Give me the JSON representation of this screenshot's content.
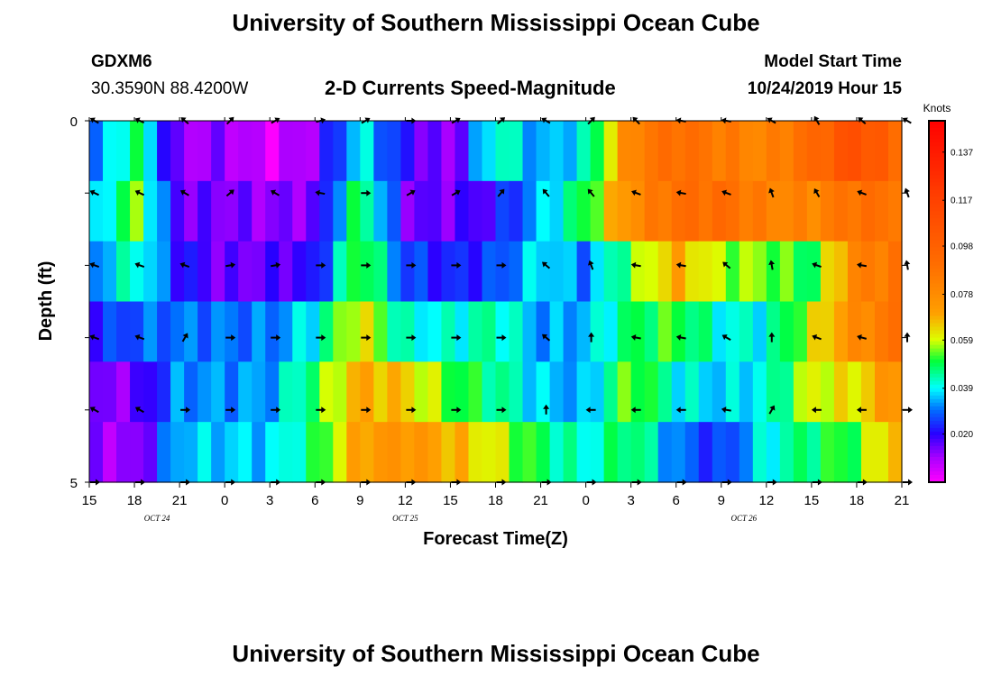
{
  "header": {
    "title_top": "University of Southern Mississippi Ocean Cube",
    "title_bottom": "University of Southern Mississippi Ocean Cube",
    "station_id": "GDXM6",
    "coords": "30.3590N 88.4200W",
    "model_start_label": "Model Start Time",
    "model_start_value": "10/24/2019 Hour 15"
  },
  "chart_data": {
    "type": "heatmap",
    "title": "2-D Currents Speed-Magnitude",
    "xlabel": "Forecast Time(Z)",
    "ylabel": "Depth (ft)",
    "x_tick_labels": [
      "15",
      "18",
      "21",
      "0",
      "3",
      "6",
      "9",
      "12",
      "15",
      "18",
      "21",
      "0",
      "3",
      "6",
      "9",
      "12",
      "15",
      "18",
      "21"
    ],
    "x_hours": [
      0,
      3,
      6,
      9,
      12,
      15,
      18,
      21,
      24,
      27,
      30,
      33,
      36,
      39,
      42,
      45,
      48,
      51,
      54
    ],
    "date_labels": [
      {
        "text": "OCT  24",
        "hour": 4.5
      },
      {
        "text": "OCT  25",
        "hour": 21
      },
      {
        "text": "OCT  26",
        "hour": 43.5
      }
    ],
    "y_tick_labels": [
      "0",
      "5"
    ],
    "y_range": [
      0,
      5
    ],
    "depth_layers": [
      0.5,
      1.5,
      2.5,
      3.5,
      4.5
    ],
    "colorbar": {
      "unit": "Knots",
      "ticks": [
        "0.137",
        "0.117",
        "0.098",
        "0.078",
        "0.059",
        "0.039",
        "0.020"
      ],
      "tick_values": [
        0.137,
        0.117,
        0.098,
        0.078,
        0.059,
        0.039,
        0.02
      ],
      "range": [
        0.0,
        0.15
      ]
    },
    "x_nodes": [
      0,
      3,
      6,
      9,
      12,
      15,
      18,
      21,
      24,
      27,
      30,
      33,
      36,
      39,
      42,
      45,
      48,
      51,
      54
    ],
    "speed_rows": [
      [
        0.025,
        0.05,
        0.01,
        0.012,
        0.004,
        0.012,
        0.04,
        0.02,
        0.01,
        0.045,
        0.032,
        0.04,
        0.082,
        0.092,
        0.085,
        0.08,
        0.092,
        0.11,
        0.09
      ],
      [
        0.03,
        0.056,
        0.015,
        0.014,
        0.012,
        0.014,
        0.052,
        0.015,
        0.015,
        0.02,
        0.035,
        0.05,
        0.078,
        0.09,
        0.092,
        0.082,
        0.08,
        0.09,
        0.088
      ],
      [
        0.03,
        0.044,
        0.022,
        0.014,
        0.016,
        0.02,
        0.056,
        0.026,
        0.022,
        0.026,
        0.039,
        0.03,
        0.052,
        0.07,
        0.056,
        0.055,
        0.048,
        0.082,
        0.088
      ],
      [
        0.022,
        0.028,
        0.03,
        0.03,
        0.03,
        0.04,
        0.064,
        0.04,
        0.04,
        0.045,
        0.032,
        0.035,
        0.048,
        0.052,
        0.04,
        0.04,
        0.06,
        0.078,
        0.09
      ],
      [
        0.012,
        0.014,
        0.032,
        0.032,
        0.033,
        0.05,
        0.07,
        0.065,
        0.052,
        0.046,
        0.036,
        0.033,
        0.056,
        0.04,
        0.036,
        0.04,
        0.06,
        0.062,
        0.08
      ],
      [
        0.012,
        0.01,
        0.036,
        0.036,
        0.036,
        0.048,
        0.072,
        0.075,
        0.068,
        0.06,
        0.048,
        0.04,
        0.05,
        0.03,
        0.024,
        0.04,
        0.048,
        0.052,
        0.072
      ]
    ],
    "arrow_x_hours": [
      0,
      3,
      6,
      9,
      12,
      15,
      18,
      21,
      24,
      27,
      30,
      33,
      36,
      39,
      42,
      45,
      48,
      51,
      54
    ],
    "arrow_angles_deg": [
      [
        150,
        155,
        140,
        45,
        30,
        15,
        30,
        0,
        30,
        40,
        150,
        45,
        135,
        170,
        170,
        150,
        120,
        140,
        150
      ],
      [
        155,
        155,
        150,
        40,
        150,
        170,
        0,
        30,
        30,
        50,
        130,
        130,
        160,
        170,
        160,
        110,
        120,
        160,
        110
      ],
      [
        160,
        160,
        160,
        10,
        10,
        0,
        0,
        0,
        0,
        0,
        140,
        110,
        170,
        170,
        140,
        100,
        160,
        170,
        100
      ],
      [
        160,
        160,
        60,
        0,
        0,
        0,
        0,
        0,
        0,
        0,
        140,
        90,
        170,
        170,
        150,
        90,
        160,
        165,
        90
      ],
      [
        150,
        150,
        0,
        0,
        0,
        0,
        0,
        0,
        0,
        0,
        90,
        180,
        180,
        180,
        170,
        60,
        180,
        180,
        0
      ],
      [
        0,
        0,
        0,
        0,
        0,
        0,
        0,
        0,
        0,
        0,
        0,
        0,
        0,
        0,
        0,
        0,
        0,
        0,
        0
      ]
    ]
  }
}
